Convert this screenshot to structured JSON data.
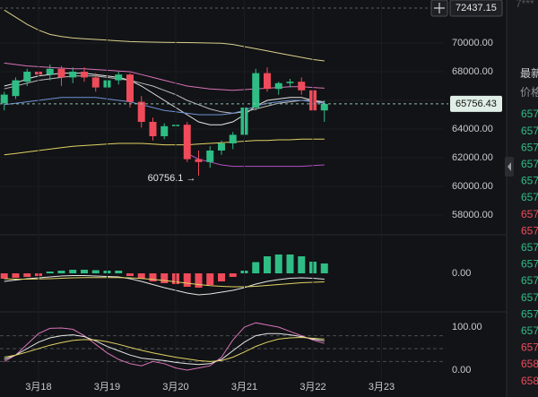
{
  "chart_data": [
    {
      "type": "candlestick",
      "x": [
        0,
        1,
        2,
        3,
        4,
        5,
        6,
        7,
        8,
        9,
        10,
        11,
        12,
        13,
        14,
        15,
        16,
        17,
        18,
        19,
        20,
        21,
        22,
        23,
        24,
        25,
        26,
        27,
        28
      ],
      "open": [
        65800,
        66300,
        67300,
        68000,
        67800,
        68200,
        67600,
        68000,
        67600,
        66900,
        67400,
        67800,
        65900,
        64500,
        63500,
        64200,
        64300,
        61900,
        61700,
        62500,
        63000,
        63600,
        65500,
        67900,
        66800,
        67200,
        67300,
        66700,
        65300
      ],
      "high": [
        66600,
        67600,
        68200,
        68400,
        68500,
        68400,
        68300,
        68300,
        67900,
        67600,
        68000,
        67900,
        66300,
        64800,
        64400,
        64700,
        64500,
        62500,
        62800,
        63200,
        63800,
        65600,
        68200,
        68300,
        67300,
        67500,
        67600,
        66900,
        66000
      ],
      "low": [
        65300,
        66100,
        67000,
        67500,
        67400,
        67000,
        67200,
        67300,
        66600,
        66700,
        67100,
        65500,
        64100,
        63200,
        63300,
        63800,
        61700,
        60756.1,
        61300,
        62200,
        62600,
        62400,
        65300,
        66600,
        66400,
        66900,
        66400,
        65100,
        64500
      ],
      "close": [
        66400,
        67400,
        68000,
        67800,
        68200,
        67600,
        68000,
        67600,
        66900,
        67400,
        67800,
        65900,
        64500,
        63500,
        64200,
        64300,
        61900,
        61700,
        62500,
        63000,
        63600,
        65500,
        67900,
        66800,
        67200,
        67300,
        66700,
        65300,
        65756.43
      ],
      "up_color": "#2ebd85",
      "down_color": "#ef4b5b",
      "series": [
        {
          "color": "#d9d08c",
          "values": [
            72300,
            71800,
            71300,
            70900,
            70600,
            70450,
            70350,
            70300,
            70250,
            70200,
            70150,
            70100,
            70080,
            70060,
            70050,
            70040,
            70030,
            70010,
            70000,
            69980,
            69900,
            69750,
            69600,
            69450,
            69300,
            69150,
            69000,
            68850,
            68750
          ]
        },
        {
          "color": "#d873b8",
          "values": [
            68600,
            68500,
            68400,
            68350,
            68300,
            68250,
            68200,
            68200,
            68150,
            68100,
            68050,
            68000,
            67800,
            67600,
            67400,
            67200,
            67000,
            66900,
            66800,
            66750,
            66700,
            66750,
            66800,
            66850,
            66900,
            66950,
            66950,
            66900,
            66850
          ]
        },
        {
          "color": "#e6e6e6",
          "values": [
            67000,
            67200,
            67500,
            67700,
            67800,
            67900,
            67900,
            67900,
            67800,
            67700,
            67600,
            67400,
            67000,
            66500,
            66000,
            65500,
            65000,
            64500,
            64300,
            64300,
            64500,
            65000,
            65600,
            66000,
            66100,
            66200,
            66200,
            66000,
            65800
          ]
        },
        {
          "color": "#bdbdbd",
          "values": [
            66800,
            67000,
            67200,
            67400,
            67500,
            67600,
            67700,
            67700,
            67700,
            67600,
            67500,
            67400,
            67200,
            67000,
            66700,
            66400,
            66000,
            65700,
            65400,
            65200,
            65100,
            65200,
            65400,
            65600,
            65800,
            65900,
            66000,
            66000,
            65900
          ]
        },
        {
          "color": "#6f93d6",
          "values": [
            65700,
            65800,
            65900,
            66000,
            66100,
            66200,
            66200,
            66200,
            66200,
            66100,
            66000,
            65900,
            65700,
            65500,
            65300,
            65200,
            65100,
            65000,
            65000,
            65000,
            65100,
            65300,
            65600,
            65800,
            65900,
            66000,
            66000,
            65900,
            65800
          ]
        },
        {
          "color": "#e0d264",
          "values": [
            62200,
            62300,
            62400,
            62500,
            62600,
            62700,
            62800,
            62850,
            62900,
            62950,
            63000,
            63000,
            63000,
            62950,
            62900,
            62900,
            62900,
            62950,
            63000,
            63050,
            63100,
            63150,
            63200,
            63200,
            63250,
            63250,
            63300,
            63300,
            63300
          ]
        },
        {
          "color": "#b452c4",
          "values": [
            null,
            null,
            null,
            null,
            null,
            null,
            null,
            null,
            null,
            null,
            null,
            null,
            null,
            null,
            null,
            null,
            62300,
            61900,
            61700,
            61500,
            61400,
            61400,
            61400,
            61400,
            61400,
            61400,
            61400,
            61450,
            61500
          ]
        }
      ],
      "xlim": [
        -0.37,
        38.45
      ],
      "ylim": [
        56625,
        73000
      ],
      "yticks": [
        {
          "value": 58000,
          "label": "58000.00"
        },
        {
          "value": 60000,
          "label": "60000.00"
        },
        {
          "value": 62000,
          "label": "62000.00"
        },
        {
          "value": 64000,
          "label": "64000.00"
        },
        {
          "value": 66000,
          "label": "66000.00"
        },
        {
          "value": 68000,
          "label": "68000.00"
        },
        {
          "value": 70000,
          "label": "70000.00"
        }
      ],
      "grid": true,
      "high_line": 72437.15,
      "last_price": 65756.43,
      "annotation": "60756.1 →"
    },
    {
      "type": "bar",
      "x": [
        0,
        1,
        2,
        3,
        4,
        5,
        6,
        7,
        8,
        9,
        10,
        11,
        12,
        13,
        14,
        15,
        16,
        17,
        18,
        19,
        20,
        21,
        22,
        23,
        24,
        25,
        26,
        27,
        28
      ],
      "up_color": "#2ebd85",
      "down_color": "#ef4b5b",
      "values": [
        -120,
        -100,
        -80,
        -60,
        40,
        60,
        80,
        80,
        70,
        60,
        60,
        -60,
        -120,
        -180,
        -220,
        -240,
        -300,
        -320,
        -260,
        -180,
        -80,
        60,
        250,
        380,
        420,
        420,
        380,
        260,
        220
      ],
      "series": [
        {
          "color": "#e6e6e6",
          "values": [
            -180,
            -150,
            -120,
            -100,
            -80,
            -60,
            -50,
            -50,
            -60,
            -70,
            -80,
            -120,
            -180,
            -250,
            -320,
            -380,
            -440,
            -480,
            -460,
            -420,
            -380,
            -320,
            -240,
            -180,
            -140,
            -110,
            -100,
            -110,
            -130
          ]
        },
        {
          "color": "#e0d264",
          "values": [
            -120,
            -130,
            -130,
            -125,
            -120,
            -110,
            -100,
            -95,
            -95,
            -95,
            -95,
            -100,
            -115,
            -135,
            -160,
            -190,
            -220,
            -250,
            -275,
            -290,
            -300,
            -300,
            -290,
            -270,
            -250,
            -230,
            -210,
            -200,
            -190
          ]
        }
      ],
      "xlim": [
        -0.37,
        38.45
      ],
      "ylim": [
        -860,
        860
      ],
      "yticks": [
        {
          "value": 0,
          "label": "0.00"
        }
      ]
    },
    {
      "type": "line",
      "x": [
        0,
        1,
        2,
        3,
        4,
        5,
        6,
        7,
        8,
        9,
        10,
        11,
        12,
        13,
        14,
        15,
        16,
        17,
        18,
        19,
        20,
        21,
        22,
        23,
        24,
        25,
        26,
        27,
        28
      ],
      "series": [
        {
          "color": "#d873b8",
          "values": [
            20,
            35,
            60,
            85,
            97,
            98,
            95,
            80,
            60,
            40,
            25,
            15,
            10,
            20,
            15,
            5,
            0,
            5,
            10,
            30,
            70,
            100,
            110,
            105,
            100,
            90,
            80,
            70,
            62
          ]
        },
        {
          "color": "#e6e6e6",
          "values": [
            25,
            35,
            50,
            65,
            75,
            80,
            82,
            78,
            68,
            55,
            45,
            35,
            28,
            25,
            22,
            18,
            15,
            13,
            15,
            25,
            45,
            65,
            80,
            85,
            85,
            82,
            78,
            72,
            68
          ]
        },
        {
          "color": "#e0d264",
          "values": [
            30,
            35,
            42,
            50,
            58,
            64,
            69,
            71,
            70,
            66,
            60,
            53,
            46,
            40,
            35,
            30,
            26,
            22,
            20,
            22,
            30,
            42,
            55,
            65,
            72,
            75,
            76,
            74,
            72
          ]
        }
      ],
      "reference_lines": [
        80,
        50,
        20
      ],
      "xlim": [
        -0.37,
        38.45
      ],
      "ylim": [
        -62.5,
        135.4
      ],
      "yticks": [
        {
          "value": 0,
          "label": "0.00"
        },
        {
          "value": 100,
          "label": "100.00"
        }
      ],
      "xticks": [
        {
          "value": 3,
          "label": "3月18"
        },
        {
          "value": 9,
          "label": "3月19"
        },
        {
          "value": 15,
          "label": "3月20"
        },
        {
          "value": 21,
          "label": "3月21"
        },
        {
          "value": 27,
          "label": "3月22"
        },
        {
          "value": 33,
          "label": "3月23"
        }
      ]
    }
  ],
  "side_panel": {
    "header": "7***",
    "title": "最新",
    "column": "价格",
    "rows": [
      {
        "text": "657",
        "color": "#2ebd85"
      },
      {
        "text": "657",
        "color": "#2ebd85"
      },
      {
        "text": "657",
        "color": "#2ebd85"
      },
      {
        "text": "657",
        "color": "#2ebd85"
      },
      {
        "text": "657",
        "color": "#2ebd85"
      },
      {
        "text": "657",
        "color": "#2ebd85"
      },
      {
        "text": "657",
        "color": "#ef4b5b"
      },
      {
        "text": "657",
        "color": "#ef4b5b"
      },
      {
        "text": "657",
        "color": "#2ebd85"
      },
      {
        "text": "657",
        "color": "#2ebd85"
      },
      {
        "text": "657",
        "color": "#2ebd85"
      },
      {
        "text": "657",
        "color": "#2ebd85"
      },
      {
        "text": "657",
        "color": "#2ebd85"
      },
      {
        "text": "657",
        "color": "#2ebd85"
      },
      {
        "text": "657",
        "color": "#ef4b5b"
      },
      {
        "text": "658",
        "color": "#ef4b5b"
      },
      {
        "text": "658",
        "color": "#ef4b5b"
      }
    ]
  }
}
